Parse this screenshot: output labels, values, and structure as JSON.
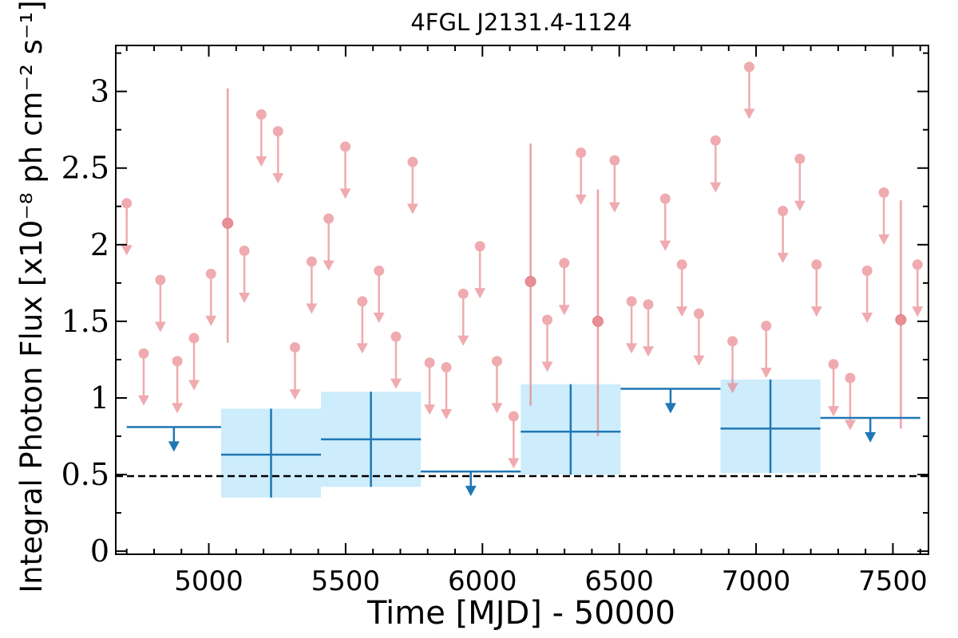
{
  "chart_data": {
    "type": "scatter",
    "title": "4FGL J2131.4-1124",
    "xlabel": "Time [MJD] - 50000",
    "ylabel": "Integral Photon Flux [x10⁻⁸ ph cm⁻² s⁻¹]",
    "xlim": [
      4660,
      7630
    ],
    "ylim": [
      -0.02,
      3.3
    ],
    "x_ticks": [
      5000,
      5500,
      6000,
      6500,
      7000,
      7500
    ],
    "y_ticks": [
      0,
      0.5,
      1,
      1.5,
      2,
      2.5,
      3
    ],
    "y_tick_labels": [
      "0",
      "0.5",
      "1",
      "1.5",
      "2",
      "2.5",
      "3"
    ],
    "grid": false,
    "reference_line": {
      "y": 0.49,
      "style": "dashed",
      "color": "#000000"
    },
    "series": [
      {
        "style": "short-bin upper limits and detections",
        "color": "#e8848a",
        "upper_limits": [
          {
            "x": 4700,
            "y": 2.27
          },
          {
            "x": 4762,
            "y": 1.29
          },
          {
            "x": 4823,
            "y": 1.77
          },
          {
            "x": 4885,
            "y": 1.24
          },
          {
            "x": 4946,
            "y": 1.39
          },
          {
            "x": 5008,
            "y": 1.81
          },
          {
            "x": 5130,
            "y": 1.96
          },
          {
            "x": 5192,
            "y": 2.85
          },
          {
            "x": 5253,
            "y": 2.74
          },
          {
            "x": 5315,
            "y": 1.33
          },
          {
            "x": 5376,
            "y": 1.89
          },
          {
            "x": 5438,
            "y": 2.17
          },
          {
            "x": 5499,
            "y": 2.64
          },
          {
            "x": 5561,
            "y": 1.63
          },
          {
            "x": 5622,
            "y": 1.83
          },
          {
            "x": 5684,
            "y": 1.4
          },
          {
            "x": 5745,
            "y": 2.54
          },
          {
            "x": 5807,
            "y": 1.23
          },
          {
            "x": 5868,
            "y": 1.2
          },
          {
            "x": 5930,
            "y": 1.68
          },
          {
            "x": 5991,
            "y": 1.99
          },
          {
            "x": 6053,
            "y": 1.24
          },
          {
            "x": 6114,
            "y": 0.88
          },
          {
            "x": 6237,
            "y": 1.51
          },
          {
            "x": 6299,
            "y": 1.88
          },
          {
            "x": 6360,
            "y": 2.6
          },
          {
            "x": 6483,
            "y": 2.55
          },
          {
            "x": 6545,
            "y": 1.63
          },
          {
            "x": 6606,
            "y": 1.61
          },
          {
            "x": 6668,
            "y": 2.3
          },
          {
            "x": 6729,
            "y": 1.87
          },
          {
            "x": 6791,
            "y": 1.55
          },
          {
            "x": 6852,
            "y": 2.68
          },
          {
            "x": 6914,
            "y": 1.37
          },
          {
            "x": 6975,
            "y": 3.16
          },
          {
            "x": 7037,
            "y": 1.47
          },
          {
            "x": 7098,
            "y": 2.22
          },
          {
            "x": 7160,
            "y": 2.56
          },
          {
            "x": 7221,
            "y": 1.87
          },
          {
            "x": 7283,
            "y": 1.22
          },
          {
            "x": 7344,
            "y": 1.13
          },
          {
            "x": 7406,
            "y": 1.83
          },
          {
            "x": 7467,
            "y": 2.34
          },
          {
            "x": 7590,
            "y": 1.87
          }
        ],
        "detections": [
          {
            "x": 5069,
            "y": 2.14,
            "yerr_low": 1.36,
            "yerr_high": 3.02
          },
          {
            "x": 6176,
            "y": 1.76,
            "yerr_low": 0.95,
            "yerr_high": 2.66
          },
          {
            "x": 6422,
            "y": 1.5,
            "yerr_low": 0.75,
            "yerr_high": 2.36
          },
          {
            "x": 7529,
            "y": 1.51,
            "yerr_low": 0.8,
            "yerr_high": 2.29
          }
        ]
      },
      {
        "style": "long-bin upper limits and detections",
        "color": "#1f77b4",
        "band_color": "#cdecfc",
        "upper_limits": [
          {
            "x_low": 4700,
            "x_high": 5045,
            "y": 0.81
          },
          {
            "x_low": 5775,
            "x_high": 6140,
            "y": 0.52
          },
          {
            "x_low": 6505,
            "x_high": 6870,
            "y": 1.06
          },
          {
            "x_low": 7235,
            "x_high": 7600,
            "y": 0.87
          }
        ],
        "detections": [
          {
            "x_low": 5045,
            "x_high": 5410,
            "y": 0.63,
            "y_low": 0.35,
            "y_high": 0.93
          },
          {
            "x_low": 5410,
            "x_high": 5775,
            "y": 0.73,
            "y_low": 0.42,
            "y_high": 1.04
          },
          {
            "x_low": 6140,
            "x_high": 6505,
            "y": 0.78,
            "y_low": 0.5,
            "y_high": 1.09
          },
          {
            "x_low": 6870,
            "x_high": 7235,
            "y": 0.8,
            "y_low": 0.51,
            "y_high": 1.12
          }
        ]
      }
    ]
  }
}
